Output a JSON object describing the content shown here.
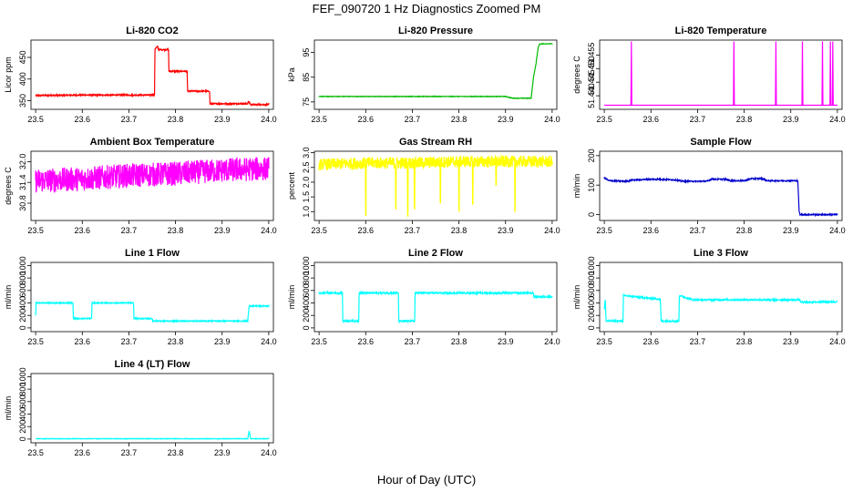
{
  "figure": {
    "title": "FEF_090720  1 Hz Diagnostics Zoomed PM",
    "xlabel": "Hour of Day (UTC)"
  },
  "chart_data": [
    {
      "type": "line",
      "title": "Li-820 CO2",
      "ylabel": "Licor ppm",
      "color": "#ff0000",
      "xlim": [
        23.49,
        24.01
      ],
      "ylim": [
        330,
        490
      ],
      "xticks": [
        23.5,
        23.6,
        23.7,
        23.8,
        23.9,
        24.0
      ],
      "xtick_labels": [
        "23.5",
        "23.6",
        "23.7",
        "23.8",
        "23.9",
        "24.0"
      ],
      "yticks": [
        350,
        400,
        450
      ],
      "ytick_labels": [
        "350",
        "400",
        "450"
      ],
      "noise": 1.5,
      "x": [
        23.5,
        23.6,
        23.755,
        23.756,
        23.762,
        23.763,
        23.785,
        23.786,
        23.825,
        23.826,
        23.873,
        23.874,
        23.955,
        23.956,
        23.96,
        23.961,
        24.0
      ],
      "y": [
        362,
        363,
        363,
        470,
        475,
        468,
        468,
        418,
        418,
        372,
        372,
        343,
        343,
        348,
        343,
        341,
        341
      ]
    },
    {
      "type": "line",
      "title": "Li-820 Pressure",
      "ylabel": "kPa",
      "color": "#00bb00",
      "xlim": [
        23.49,
        24.01
      ],
      "ylim": [
        72,
        100
      ],
      "xticks": [
        23.5,
        23.6,
        23.7,
        23.8,
        23.9,
        24.0
      ],
      "xtick_labels": [
        "23.5",
        "23.6",
        "23.7",
        "23.8",
        "23.9",
        "24.0"
      ],
      "yticks": [
        75,
        85,
        95
      ],
      "ytick_labels": [
        "75",
        "85",
        "95"
      ],
      "noise": 0.1,
      "x": [
        23.5,
        23.9,
        23.915,
        23.955,
        23.96,
        23.965,
        23.97,
        23.973,
        23.98,
        24.0
      ],
      "y": [
        77.2,
        77.2,
        76.5,
        76.5,
        85,
        90,
        97,
        98.4,
        98.5,
        98.5
      ]
    },
    {
      "type": "line",
      "title": "Li-820 Temperature",
      "ylabel": "degrees C",
      "color": "#ff00ff",
      "xlim": [
        23.49,
        24.01
      ],
      "ylim": [
        51.435,
        51.4605
      ],
      "xticks": [
        23.5,
        23.6,
        23.7,
        23.8,
        23.9,
        24.0
      ],
      "xtick_labels": [
        "23.5",
        "23.6",
        "23.7",
        "23.8",
        "23.9",
        "24.0"
      ],
      "yticks": [
        51.44,
        51.445,
        51.45,
        51.455
      ],
      "ytick_labels": [
        "51.440",
        "51.445",
        "51.450",
        "51.455"
      ],
      "baseline": 51.4365,
      "spikes": [
        23.558,
        23.778,
        23.868,
        23.925,
        23.968,
        23.985,
        23.99
      ],
      "spike_top": 51.46
    },
    {
      "type": "line",
      "title": "Ambient Box Temperature",
      "ylabel": "degrees C",
      "color": "#ff00ff",
      "xlim": [
        23.49,
        24.01
      ],
      "ylim": [
        30.3,
        32.3
      ],
      "xticks": [
        23.5,
        23.6,
        23.7,
        23.8,
        23.9,
        24.0
      ],
      "xtick_labels": [
        "23.5",
        "23.6",
        "23.7",
        "23.8",
        "23.9",
        "24.0"
      ],
      "yticks": [
        30.8,
        31.4,
        32.0
      ],
      "ytick_labels": [
        "30.8",
        "31.4",
        "32.0"
      ],
      "noise": 0.35,
      "x": [
        23.5,
        23.6,
        23.7,
        23.8,
        23.9,
        24.0
      ],
      "y": [
        31.45,
        31.5,
        31.6,
        31.65,
        31.75,
        31.8
      ]
    },
    {
      "type": "line",
      "title": "Gas Stream RH",
      "ylabel": "percent",
      "color": "#ffff00",
      "xlim": [
        23.49,
        24.01
      ],
      "ylim": [
        0.7,
        3.05
      ],
      "xticks": [
        23.5,
        23.6,
        23.7,
        23.8,
        23.9,
        24.0
      ],
      "xtick_labels": [
        "23.5",
        "23.6",
        "23.7",
        "23.8",
        "23.9",
        "24.0"
      ],
      "yticks": [
        1.0,
        1.5,
        2.0,
        2.5,
        3.0
      ],
      "ytick_labels": [
        "1.0",
        "1.5",
        "2.0",
        "2.5",
        "3.0"
      ],
      "noise": 0.2,
      "x": [
        23.5,
        23.6,
        23.7,
        23.8,
        23.9,
        24.0
      ],
      "y": [
        2.6,
        2.65,
        2.65,
        2.7,
        2.7,
        2.7
      ],
      "dips": [
        [
          23.6,
          0.85
        ],
        [
          23.665,
          1.1
        ],
        [
          23.69,
          0.85
        ],
        [
          23.705,
          1.1
        ],
        [
          23.76,
          1.3
        ],
        [
          23.8,
          1.0
        ],
        [
          23.83,
          1.25
        ],
        [
          23.88,
          1.9
        ],
        [
          23.92,
          1.0
        ]
      ]
    },
    {
      "type": "line",
      "title": "Sample Flow",
      "ylabel": "ml/min",
      "color": "#0000cc",
      "xlim": [
        23.49,
        24.01
      ],
      "ylim": [
        -20,
        215
      ],
      "xticks": [
        23.5,
        23.6,
        23.7,
        23.8,
        23.9,
        24.0
      ],
      "xtick_labels": [
        "23.5",
        "23.6",
        "23.7",
        "23.8",
        "23.9",
        "24.0"
      ],
      "yticks": [
        0,
        100,
        200
      ],
      "ytick_labels": [
        "0",
        "100",
        "200"
      ],
      "noise": 2,
      "x": [
        23.5,
        23.51,
        23.55,
        23.56,
        23.6,
        23.61,
        23.65,
        23.67,
        23.72,
        23.73,
        23.76,
        23.77,
        23.8,
        23.815,
        23.84,
        23.85,
        23.915,
        23.918,
        23.92,
        24.0
      ],
      "y": [
        125,
        115,
        113,
        117,
        120,
        120,
        118,
        113,
        113,
        120,
        120,
        115,
        115,
        122,
        122,
        115,
        115,
        10,
        0,
        0
      ]
    },
    {
      "type": "line",
      "title": "Line 1 Flow",
      "ylabel": "ml/min",
      "color": "#00ffff",
      "xlim": [
        23.49,
        24.01
      ],
      "ylim": [
        -60,
        1050
      ],
      "xticks": [
        23.5,
        23.6,
        23.7,
        23.8,
        23.9,
        24.0
      ],
      "xtick_labels": [
        "23.5",
        "23.6",
        "23.7",
        "23.8",
        "23.9",
        "24.0"
      ],
      "yticks": [
        0,
        200,
        400,
        600,
        800,
        1000
      ],
      "ytick_labels": [
        "0",
        "200",
        "400",
        "600",
        "800",
        "1000"
      ],
      "noise": 8,
      "x": [
        23.5,
        23.501,
        23.503,
        23.58,
        23.581,
        23.62,
        23.621,
        23.71,
        23.711,
        23.75,
        23.751,
        23.955,
        23.958,
        23.96,
        24.0
      ],
      "y": [
        200,
        400,
        400,
        400,
        150,
        150,
        400,
        400,
        150,
        150,
        110,
        110,
        350,
        350,
        350
      ]
    },
    {
      "type": "line",
      "title": "Line 2 Flow",
      "ylabel": "ml/min",
      "color": "#00ffff",
      "xlim": [
        23.49,
        24.01
      ],
      "ylim": [
        -60,
        1050
      ],
      "xticks": [
        23.5,
        23.6,
        23.7,
        23.8,
        23.9,
        24.0
      ],
      "xtick_labels": [
        "23.5",
        "23.6",
        "23.7",
        "23.8",
        "23.9",
        "24.0"
      ],
      "yticks": [
        0,
        200,
        400,
        600,
        800,
        1000
      ],
      "ytick_labels": [
        "0",
        "200",
        "400",
        "600",
        "800",
        "1000"
      ],
      "noise": 12,
      "x": [
        23.5,
        23.55,
        23.551,
        23.585,
        23.586,
        23.67,
        23.671,
        23.705,
        23.706,
        23.96,
        23.961,
        24.0
      ],
      "y": [
        560,
        560,
        110,
        110,
        560,
        560,
        110,
        110,
        560,
        560,
        500,
        500
      ]
    },
    {
      "type": "line",
      "title": "Line 3 Flow",
      "ylabel": "ml/min",
      "color": "#00ffff",
      "xlim": [
        23.49,
        24.01
      ],
      "ylim": [
        -60,
        1050
      ],
      "xticks": [
        23.5,
        23.6,
        23.7,
        23.8,
        23.9,
        24.0
      ],
      "xtick_labels": [
        "23.5",
        "23.6",
        "23.7",
        "23.8",
        "23.9",
        "24.0"
      ],
      "yticks": [
        0,
        200,
        400,
        600,
        800,
        1000
      ],
      "ytick_labels": [
        "0",
        "200",
        "400",
        "600",
        "800",
        "1000"
      ],
      "noise": 12,
      "x": [
        23.5,
        23.502,
        23.504,
        23.54,
        23.541,
        23.59,
        23.62,
        23.622,
        23.66,
        23.661,
        23.69,
        23.92,
        23.921,
        24.0
      ],
      "y": [
        300,
        450,
        110,
        110,
        520,
        480,
        460,
        110,
        110,
        520,
        450,
        450,
        410,
        420
      ]
    },
    {
      "type": "line",
      "title": "Line 4 (LT) Flow",
      "ylabel": "ml/min",
      "color": "#00ffff",
      "xlim": [
        23.49,
        24.01
      ],
      "ylim": [
        -60,
        1050
      ],
      "xticks": [
        23.5,
        23.6,
        23.7,
        23.8,
        23.9,
        24.0
      ],
      "xtick_labels": [
        "23.5",
        "23.6",
        "23.7",
        "23.8",
        "23.9",
        "24.0"
      ],
      "yticks": [
        0,
        200,
        400,
        600,
        800,
        1000
      ],
      "ytick_labels": [
        "0",
        "200",
        "400",
        "600",
        "800",
        "1000"
      ],
      "noise": 4,
      "x": [
        23.5,
        23.955,
        23.958,
        23.961,
        24.0
      ],
      "y": [
        5,
        5,
        130,
        5,
        5
      ]
    }
  ]
}
